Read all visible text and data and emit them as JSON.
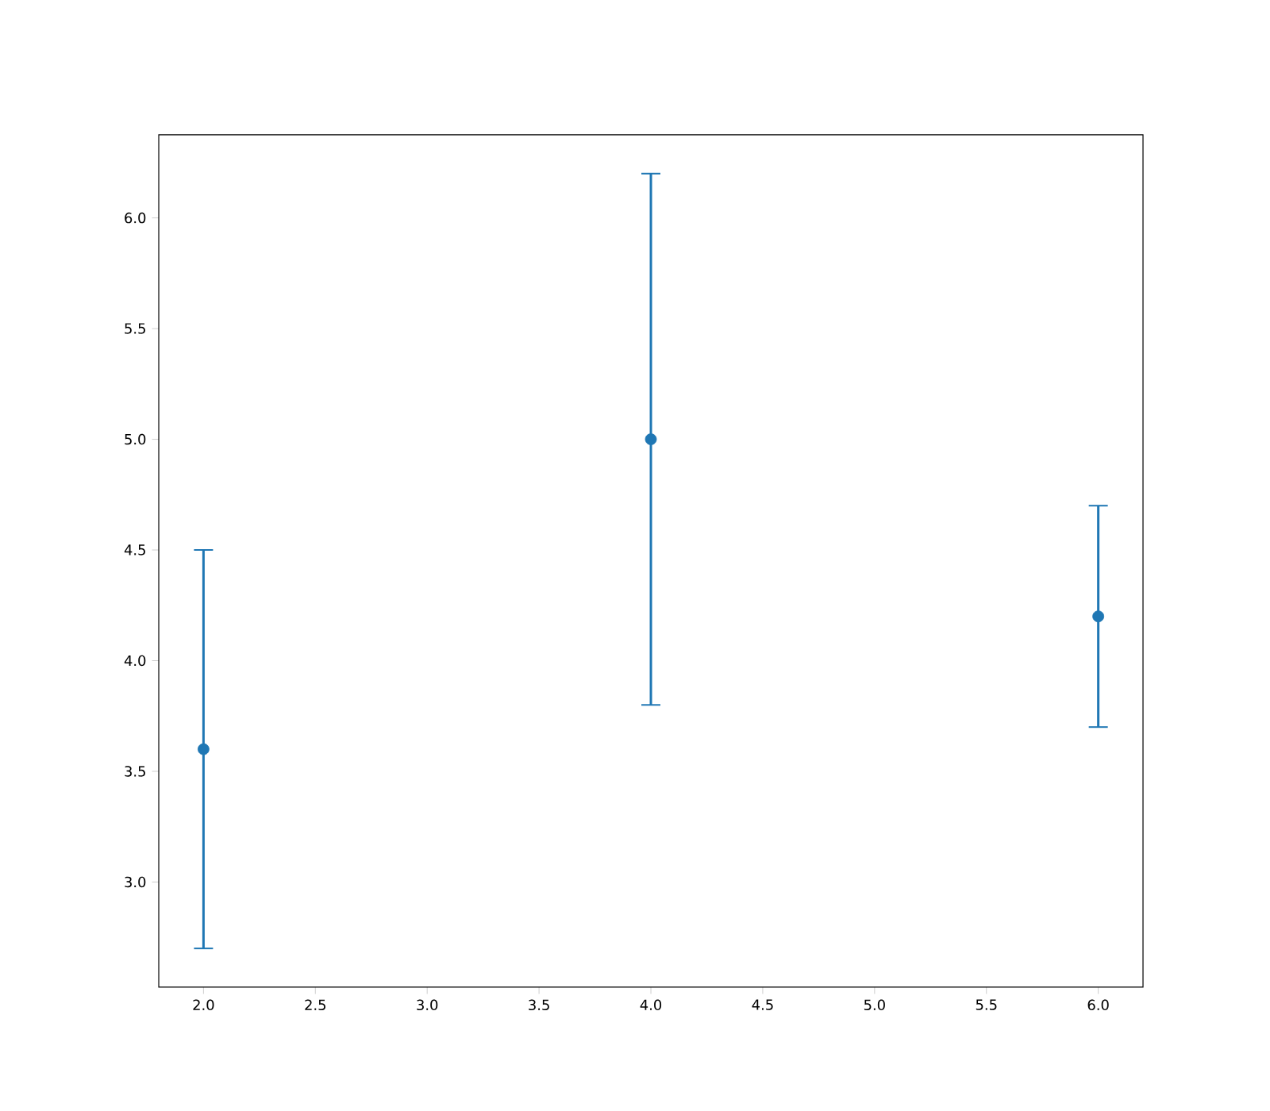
{
  "chart_data": {
    "type": "scatter",
    "x": [
      2,
      4,
      6
    ],
    "values": [
      3.6,
      5.0,
      4.2
    ],
    "errors": [
      0.9,
      1.2,
      0.5
    ],
    "color": "#1f77b4",
    "marker": "circle",
    "xlim": [
      1.8,
      6.2
    ],
    "ylim": [
      2.525,
      6.375
    ],
    "xticks": [
      {
        "value": 2,
        "label": "2.0"
      },
      {
        "value": 2.5,
        "label": "2.5"
      },
      {
        "value": 3,
        "label": "3.0"
      },
      {
        "value": 3.5,
        "label": "3.5"
      },
      {
        "value": 4,
        "label": "4.0"
      },
      {
        "value": 4.5,
        "label": "4.5"
      },
      {
        "value": 5,
        "label": "5.0"
      },
      {
        "value": 5.5,
        "label": "5.5"
      },
      {
        "value": 6,
        "label": "6.0"
      }
    ],
    "yticks": [
      {
        "value": 3,
        "label": "3.0"
      },
      {
        "value": 3.5,
        "label": "3.5"
      },
      {
        "value": 4,
        "label": "4.0"
      },
      {
        "value": 4.5,
        "label": "4.5"
      },
      {
        "value": 5,
        "label": "5.0"
      },
      {
        "value": 5.5,
        "label": "5.5"
      },
      {
        "value": 6,
        "label": "6.0"
      }
    ]
  }
}
